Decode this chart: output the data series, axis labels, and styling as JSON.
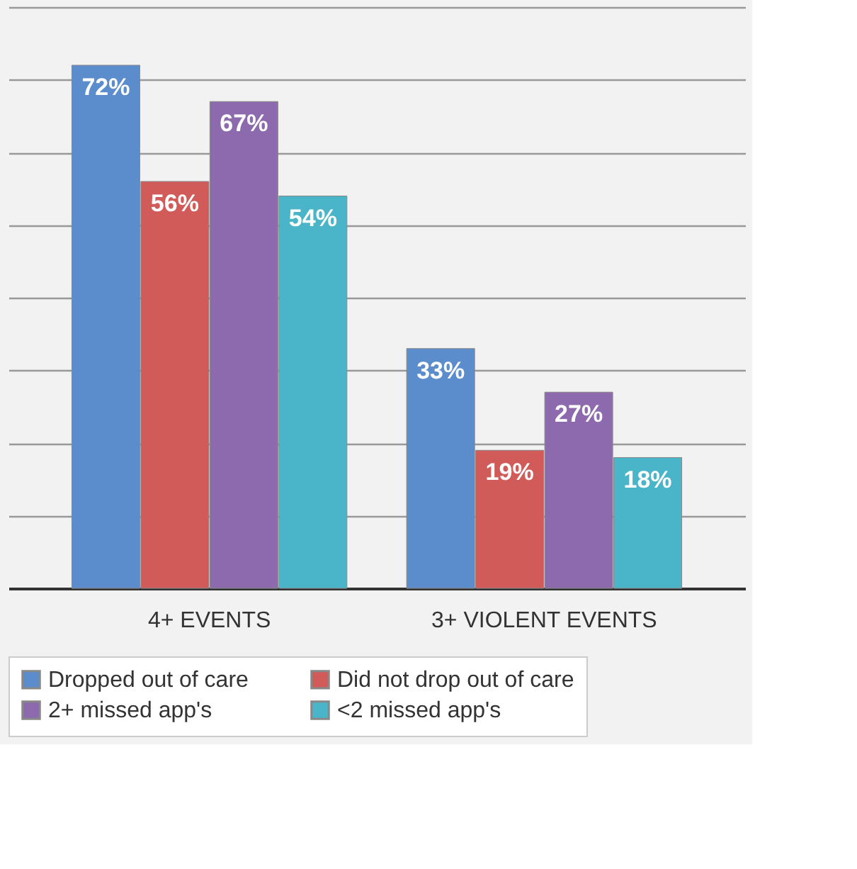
{
  "chart_data": {
    "type": "bar",
    "categories": [
      "4+ EVENTS",
      "3+ VIOLENT EVENTS"
    ],
    "series": [
      {
        "name": "Dropped out of care",
        "color": "#5b8ccc",
        "values": [
          72,
          33
        ],
        "value_labels": [
          "72%",
          "33%"
        ]
      },
      {
        "name": "Did not drop out of care",
        "color": "#d05b58",
        "values": [
          56,
          19
        ],
        "value_labels": [
          "56%",
          "19%"
        ]
      },
      {
        "name": "2+ missed app's",
        "color": "#8d6aad",
        "values": [
          67,
          27
        ],
        "value_labels": [
          "67%",
          "27%"
        ]
      },
      {
        "name": "<2 missed app's",
        "color": "#4ab5c9",
        "values": [
          54,
          18
        ],
        "value_labels": [
          "54%",
          "18%"
        ]
      }
    ],
    "ylim": [
      0,
      80
    ],
    "yticks": [
      0,
      10,
      20,
      30,
      40,
      50,
      60,
      70,
      80
    ],
    "grid": "y",
    "legend": "bottom",
    "tick_labels": "x"
  }
}
